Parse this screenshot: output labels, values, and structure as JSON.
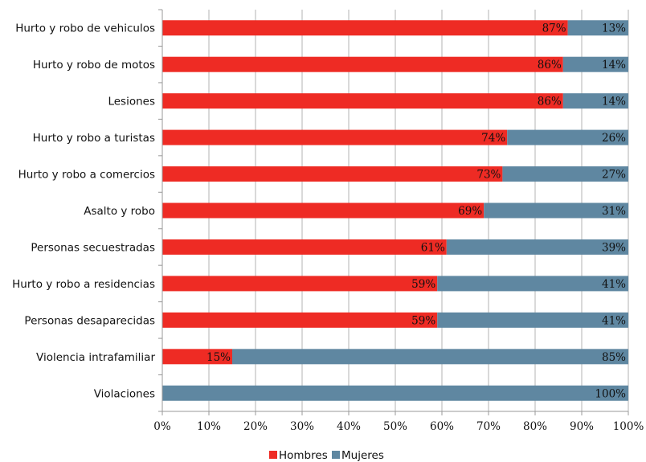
{
  "chart_data": {
    "type": "bar",
    "orientation": "horizontal",
    "stacked": true,
    "categories": [
      "Hurto y robo de vehiculos",
      "Hurto y robo de motos",
      "Lesiones",
      "Hurto y robo a turistas",
      "Hurto y robo a comercios",
      "Asalto y robo",
      "Personas secuestradas",
      "Hurto y robo a residencias",
      "Personas desaparecidas",
      "Violencia intrafamiliar",
      "Violaciones"
    ],
    "series": [
      {
        "name": "Hombres",
        "color": "#ee2b24",
        "values": [
          87,
          86,
          86,
          74,
          73,
          69,
          61,
          59,
          59,
          15,
          0
        ],
        "labels": [
          "87%",
          "86%",
          "86%",
          "74%",
          "73%",
          "69%",
          "61%",
          "59%",
          "59%",
          "15%",
          ""
        ]
      },
      {
        "name": "Mujeres",
        "color": "#5f87a1",
        "values": [
          13,
          14,
          14,
          26,
          27,
          31,
          39,
          41,
          41,
          85,
          100
        ],
        "labels": [
          "13%",
          "14%",
          "14%",
          "26%",
          "27%",
          "31%",
          "39%",
          "41%",
          "41%",
          "85%",
          "100%"
        ]
      }
    ],
    "xlim": [
      0,
      100
    ],
    "xticks": [
      "0%",
      "10%",
      "20%",
      "30%",
      "40%",
      "50%",
      "60%",
      "70%",
      "80%",
      "90%",
      "100%"
    ],
    "grid": true,
    "legend_position": "bottom"
  }
}
